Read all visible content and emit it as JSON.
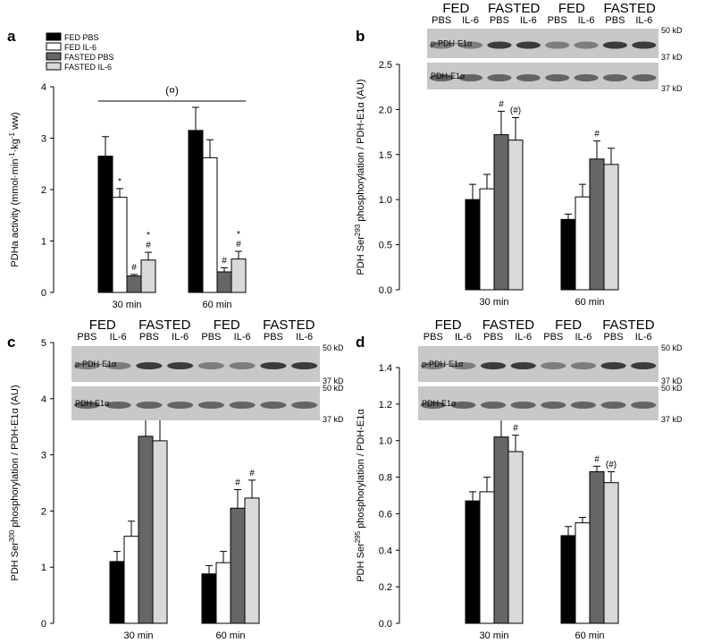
{
  "chart_data": [
    {
      "type": "bar",
      "label": "a",
      "ylabel": [
        "PDHa activity (mmol·min",
        "-1",
        "·kg",
        "-1",
        " ww)"
      ],
      "categories": [
        "30 min",
        "60 min"
      ],
      "ylim": [
        0,
        4
      ],
      "yticks": [
        0,
        1,
        2,
        3,
        4
      ],
      "legend": true,
      "bracket_label": "(¤)",
      "series": [
        {
          "name": "FED PBS",
          "color": "#000000",
          "values": [
            2.65,
            3.15
          ],
          "errors": [
            0.38,
            0.45
          ],
          "annotations": [
            null,
            null
          ]
        },
        {
          "name": "FED IL-6",
          "color": "#ffffff",
          "values": [
            1.85,
            2.62
          ],
          "errors": [
            0.17,
            0.35
          ],
          "annotations": [
            [
              "*"
            ],
            null
          ]
        },
        {
          "name": "FASTED PBS",
          "color": "#666666",
          "values": [
            0.32,
            0.4
          ],
          "errors": [
            0.03,
            0.08
          ],
          "annotations": [
            [
              "#"
            ],
            [
              "#"
            ]
          ]
        },
        {
          "name": "FASTED IL-6",
          "color": "#d9d9d9",
          "values": [
            0.63,
            0.65
          ],
          "errors": [
            0.15,
            0.15
          ],
          "annotations": [
            [
              "*",
              "#"
            ],
            [
              "*",
              "#"
            ]
          ]
        }
      ]
    },
    {
      "type": "bar",
      "label": "b",
      "ylabel": [
        "PDH Ser",
        "293",
        " phosphorylation / PDH-E1α (AU)"
      ],
      "categories": [
        "30 min",
        "60 min"
      ],
      "ylim": [
        0,
        2.5
      ],
      "yticks": [
        {
          "value": 0,
          "label": "0.0"
        },
        0.5,
        {
          "value": 1,
          "label": "1.0"
        },
        1.5,
        {
          "value": 2,
          "label": "2.0"
        },
        2.5
      ],
      "blot": {
        "groups": [
          "FED",
          "FASTED",
          "FED",
          "FASTED"
        ],
        "lanes": [
          "PBS",
          "IL-6",
          "PBS",
          "IL-6",
          "PBS",
          "IL-6",
          "PBS",
          "IL-6"
        ],
        "rows": [
          {
            "label": "p-PDH-E1α",
            "markers": [
              "50 kD",
              "37 kD"
            ]
          },
          {
            "label": "PDH-E1α",
            "markers": [
              "37 kD"
            ]
          }
        ]
      },
      "series": [
        {
          "color": "#000000",
          "values": [
            1.0,
            0.78
          ],
          "errors": [
            0.17,
            0.06
          ],
          "annotations": [
            null,
            null
          ]
        },
        {
          "color": "#ffffff",
          "values": [
            1.12,
            1.03
          ],
          "errors": [
            0.16,
            0.14
          ],
          "annotations": [
            null,
            null
          ]
        },
        {
          "color": "#666666",
          "values": [
            1.72,
            1.45
          ],
          "errors": [
            0.26,
            0.2
          ],
          "annotations": [
            [
              "#"
            ],
            [
              "#"
            ]
          ]
        },
        {
          "color": "#d9d9d9",
          "values": [
            1.66,
            1.39
          ],
          "errors": [
            0.25,
            0.18
          ],
          "annotations": [
            [
              "(#)"
            ],
            null
          ]
        }
      ]
    },
    {
      "type": "bar",
      "label": "c",
      "ylabel": [
        "PDH Ser",
        "300",
        " phosphorylation / PDH-E1α (AU)"
      ],
      "categories": [
        "30 min",
        "60 min"
      ],
      "ylim": [
        0,
        5
      ],
      "yticks": [
        0,
        1,
        2,
        3,
        4,
        5
      ],
      "blot": {
        "groups": [
          "FED",
          "FASTED",
          "FED",
          "FASTED"
        ],
        "lanes": [
          "PBS",
          "IL-6",
          "PBS",
          "IL-6",
          "PBS",
          "IL-6",
          "PBS",
          "IL-6"
        ],
        "rows": [
          {
            "label": "p-PDH-E1α",
            "markers": [
              "50 kD",
              "37 kD"
            ]
          },
          {
            "label": "PDH-E1α",
            "markers": [
              "50 kD",
              "37 kD"
            ]
          }
        ]
      },
      "series": [
        {
          "color": "#000000",
          "values": [
            1.1,
            0.88
          ],
          "errors": [
            0.18,
            0.15
          ],
          "annotations": [
            null,
            null
          ]
        },
        {
          "color": "#ffffff",
          "values": [
            1.55,
            1.08
          ],
          "errors": [
            0.27,
            0.2
          ],
          "annotations": [
            null,
            null
          ]
        },
        {
          "color": "#666666",
          "values": [
            3.33,
            2.05
          ],
          "errors": [
            0.6,
            0.33
          ],
          "annotations": [
            [
              "#"
            ],
            [
              "#"
            ]
          ]
        },
        {
          "color": "#d9d9d9",
          "values": [
            3.25,
            2.23
          ],
          "errors": [
            0.58,
            0.32
          ],
          "annotations": [
            [
              "#"
            ],
            [
              "#"
            ]
          ]
        }
      ]
    },
    {
      "type": "bar",
      "label": "d",
      "ylabel": [
        "PDH Ser",
        "295",
        " phosphorylation / PDH-E1α"
      ],
      "categories": [
        "30 min",
        "60 min"
      ],
      "ylim": [
        0,
        1.4
      ],
      "yticks": [
        {
          "value": 0,
          "label": "0.0"
        },
        0.2,
        0.4,
        0.6,
        0.8,
        {
          "value": 1,
          "label": "1.0"
        },
        1.2,
        1.4
      ],
      "blot": {
        "groups": [
          "FED",
          "FASTED",
          "FED",
          "FASTED"
        ],
        "lanes": [
          "PBS",
          "IL-6",
          "PBS",
          "IL-6",
          "PBS",
          "IL-6",
          "PBS",
          "IL-6"
        ],
        "rows": [
          {
            "label": "p-PDH-E1α",
            "markers": [
              "50 kD",
              "37 kD"
            ]
          },
          {
            "label": "PDH-E1α",
            "markers": [
              "50 kD",
              "37 kD"
            ]
          }
        ]
      },
      "series": [
        {
          "color": "#000000",
          "values": [
            0.67,
            0.48
          ],
          "errors": [
            0.05,
            0.05
          ],
          "annotations": [
            null,
            null
          ]
        },
        {
          "color": "#ffffff",
          "values": [
            0.72,
            0.55
          ],
          "errors": [
            0.08,
            0.03
          ],
          "annotations": [
            null,
            null
          ]
        },
        {
          "color": "#666666",
          "values": [
            1.02,
            0.83
          ],
          "errors": [
            0.11,
            0.03
          ],
          "annotations": [
            [
              "#"
            ],
            [
              "#"
            ]
          ]
        },
        {
          "color": "#d9d9d9",
          "values": [
            0.94,
            0.77
          ],
          "errors": [
            0.09,
            0.06
          ],
          "annotations": [
            [
              "#"
            ],
            [
              "(#)"
            ]
          ]
        }
      ]
    }
  ]
}
